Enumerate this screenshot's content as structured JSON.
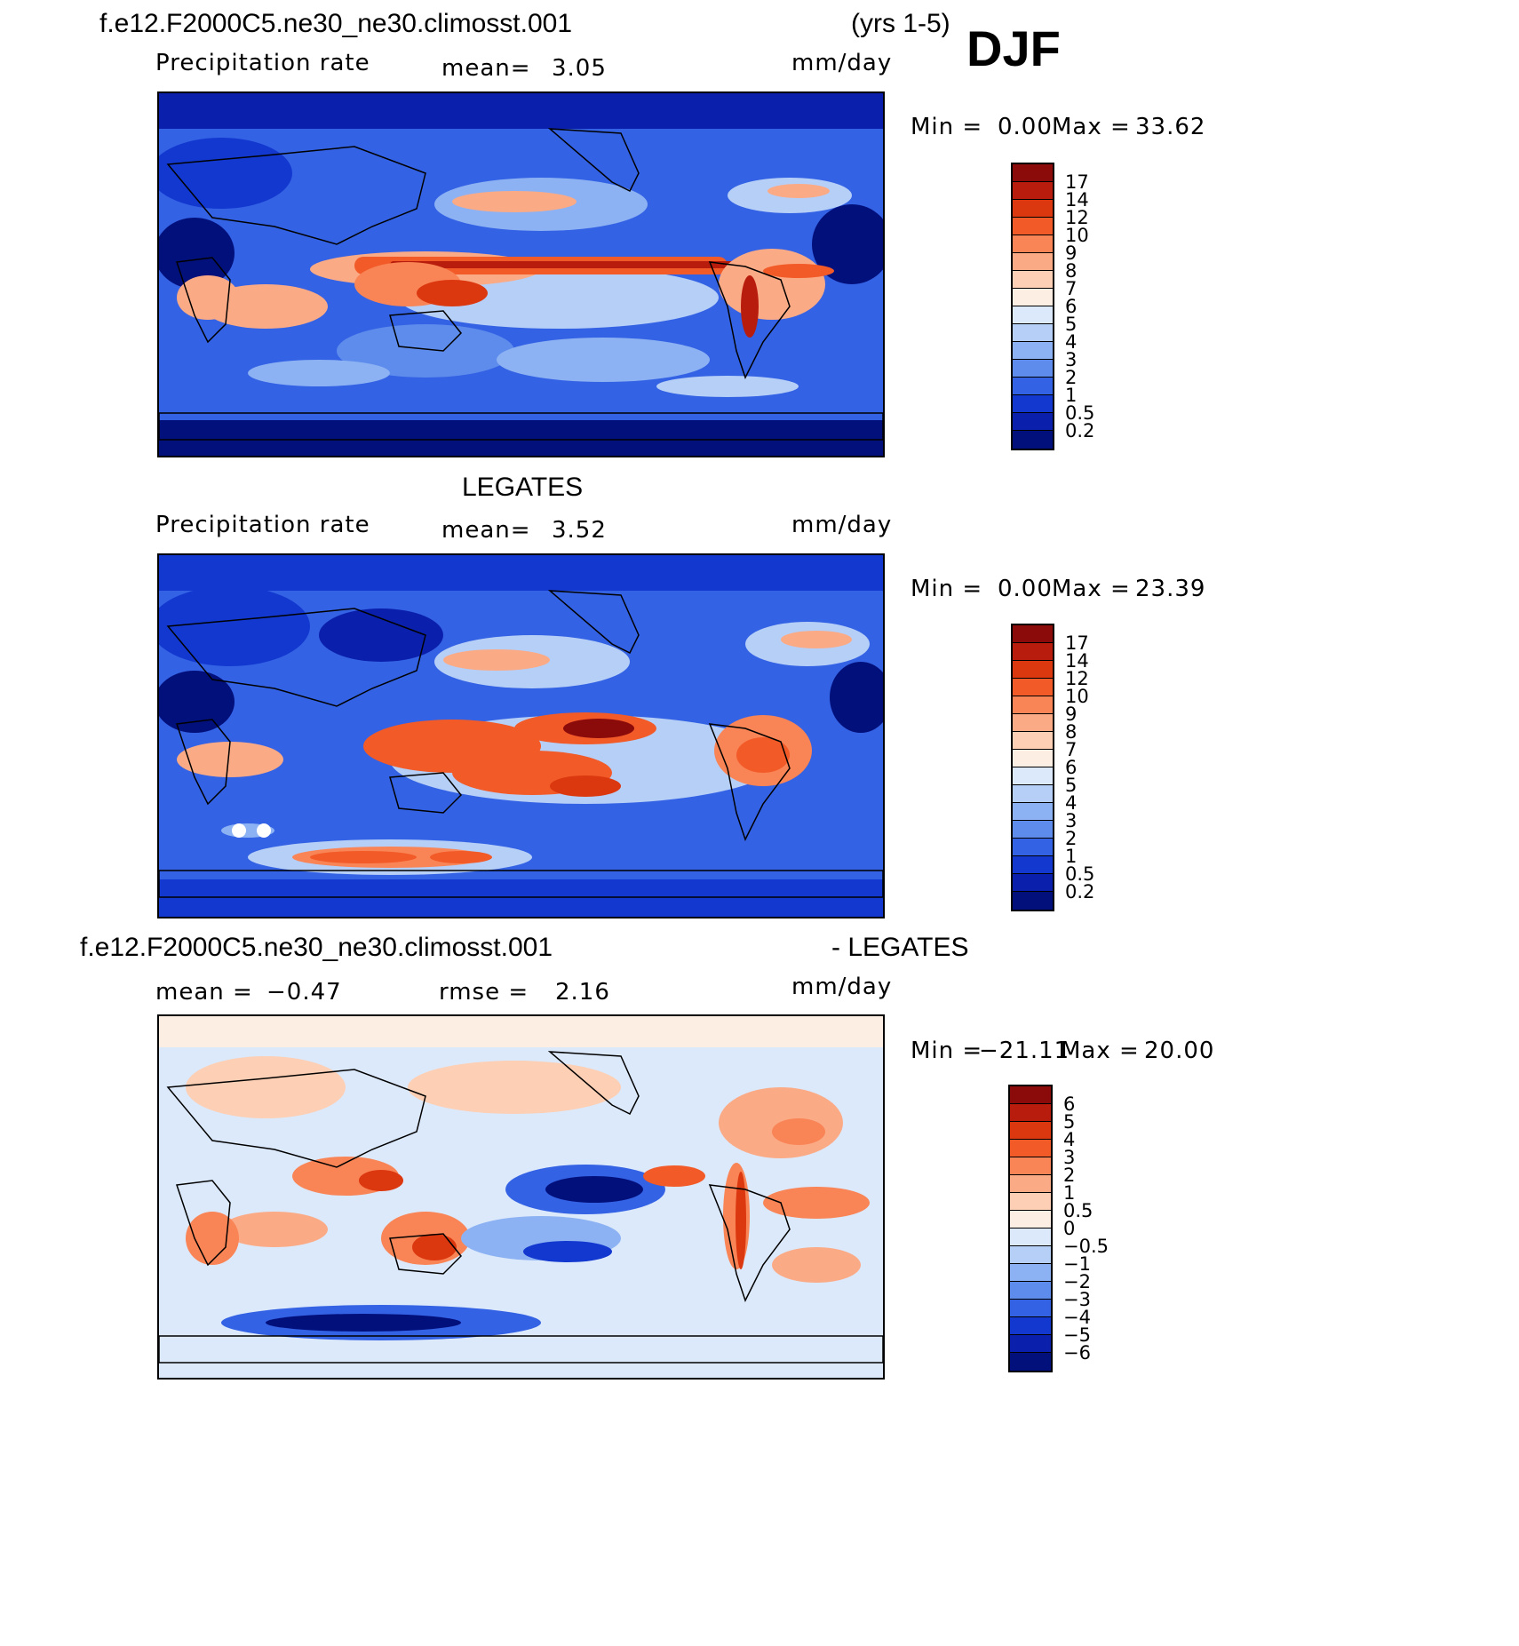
{
  "header": {
    "case_name": "f.e12.F2000C5.ne30_ne30.climosst.001",
    "years": "(yrs 1-5)",
    "season": "DJF"
  },
  "panels": [
    {
      "id": "model",
      "subtitle": "",
      "variable": "Precipitation rate",
      "mean_label": "mean=",
      "mean_value": "3.05",
      "units": "mm/day",
      "min_label": "Min =",
      "min_value": "0.00",
      "max_label": "Max =",
      "max_value": "33.62",
      "colorbar_levels": [
        "17",
        "14",
        "12",
        "10",
        "9",
        "8",
        "7",
        "6",
        "5",
        "4",
        "3",
        "2",
        "1",
        "0.5",
        "0.2"
      ],
      "colorbar_colors": [
        "#8b0a0a",
        "#b81c0c",
        "#dc3810",
        "#f25a28",
        "#f98456",
        "#fbaa86",
        "#fdcfb4",
        "#fdeee4",
        "#dce9fb",
        "#b6cff7",
        "#8cb2f3",
        "#5e8cec",
        "#3462e4",
        "#1238cf",
        "#0a20ac",
        "#02107c"
      ]
    },
    {
      "id": "obs",
      "subtitle": "LEGATES",
      "variable": "Precipitation rate",
      "mean_label": "mean=",
      "mean_value": "3.52",
      "units": "mm/day",
      "min_label": "Min =",
      "min_value": "0.00",
      "max_label": "Max =",
      "max_value": "23.39",
      "colorbar_levels": [
        "17",
        "14",
        "12",
        "10",
        "9",
        "8",
        "7",
        "6",
        "5",
        "4",
        "3",
        "2",
        "1",
        "0.5",
        "0.2"
      ],
      "colorbar_colors": [
        "#8b0a0a",
        "#b81c0c",
        "#dc3810",
        "#f25a28",
        "#f98456",
        "#fbaa86",
        "#fdcfb4",
        "#fdeee4",
        "#dce9fb",
        "#b6cff7",
        "#8cb2f3",
        "#5e8cec",
        "#3462e4",
        "#1238cf",
        "#0a20ac",
        "#02107c"
      ]
    },
    {
      "id": "diff",
      "title_left": "f.e12.F2000C5.ne30_ne30.climosst.001",
      "title_right": "- LEGATES",
      "mean_label": "mean =",
      "mean_value": "−0.47",
      "rmse_label": "rmse =",
      "rmse_value": "2.16",
      "units": "mm/day",
      "min_label": "Min =",
      "min_value": "−21.11",
      "max_label": "Max =",
      "max_value": "20.00",
      "colorbar_levels": [
        "6",
        "5",
        "4",
        "3",
        "2",
        "1",
        "0.5",
        "0",
        "−0.5",
        "−1",
        "−2",
        "−3",
        "−4",
        "−5",
        "−6"
      ],
      "colorbar_colors": [
        "#8b0a0a",
        "#b81c0c",
        "#dc3810",
        "#f25a28",
        "#f98456",
        "#fbaa86",
        "#fdcfb4",
        "#fdeee4",
        "#dce9fb",
        "#b6cff7",
        "#8cb2f3",
        "#5e8cec",
        "#3462e4",
        "#1238cf",
        "#0a20ac",
        "#02107c"
      ]
    }
  ]
}
